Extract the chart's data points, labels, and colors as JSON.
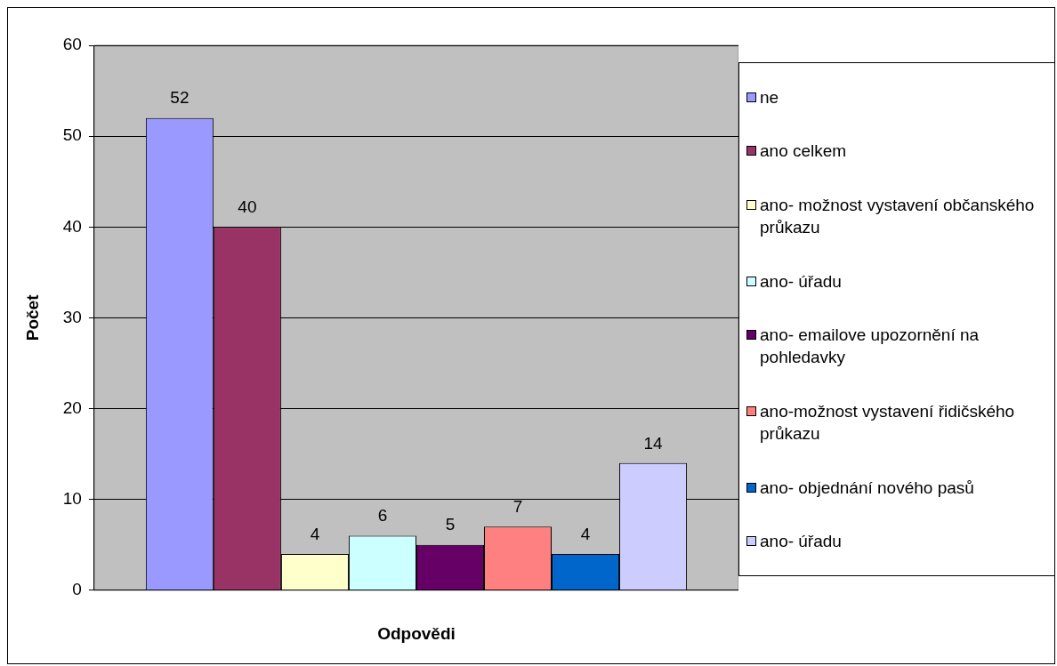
{
  "chart_data": {
    "type": "bar",
    "xlabel": "Odpovědi",
    "ylabel": "Počet",
    "categories": [
      null
    ],
    "series": [
      {
        "name": "ne",
        "color": "#9999ff",
        "values": [
          52
        ]
      },
      {
        "name": "ano celkem",
        "color": "#993366",
        "values": [
          40
        ]
      },
      {
        "name": "ano- možnost vystavení občanského průkazu",
        "color": "#ffffcc",
        "values": [
          4
        ]
      },
      {
        "name": "ano- úřadu",
        "color": "#ccffff",
        "values": [
          6
        ]
      },
      {
        "name": "ano- emailove upozornění na pohledavky",
        "color": "#660066",
        "values": [
          5
        ]
      },
      {
        "name": "ano-možnost vystavení řidičského průkazu",
        "color": "#ff8080",
        "values": [
          7
        ]
      },
      {
        "name": "ano- objednání nového pasů",
        "color": "#0066cc",
        "values": [
          4
        ]
      },
      {
        "name": "ano- úřadu",
        "color": "#ccccff",
        "values": [
          14
        ]
      }
    ],
    "ylim": [
      0,
      60
    ],
    "yticks": [
      0,
      10,
      20,
      30,
      40,
      50,
      60
    ],
    "grid": "y",
    "legend": "right",
    "data_labels": true
  }
}
